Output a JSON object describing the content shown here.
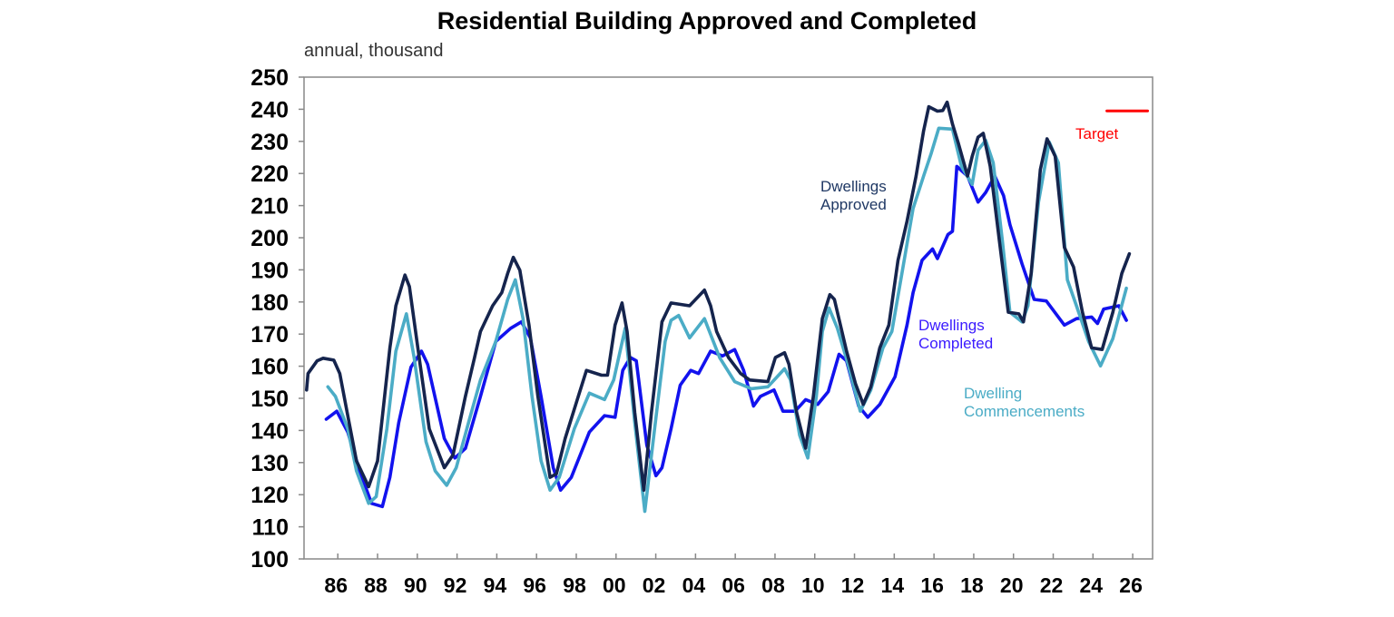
{
  "chart_data": {
    "type": "line",
    "title": "Residential Building Approved and Completed",
    "subtitle": "annual, thousand",
    "xlabel": "",
    "ylabel": "",
    "ylim": [
      100,
      250
    ],
    "xlim": [
      1984.3,
      2027.0
    ],
    "y_ticks": [
      100,
      110,
      120,
      130,
      140,
      150,
      160,
      170,
      180,
      190,
      200,
      210,
      220,
      230,
      240,
      250
    ],
    "y_tick_labels": [
      "100",
      "110",
      "120",
      "130",
      "140",
      "150",
      "160",
      "170",
      "180",
      "190",
      "200",
      "210",
      "220",
      "230",
      "240",
      "250"
    ],
    "x_ticks": [
      1986,
      1988,
      1990,
      1992,
      1994,
      1996,
      1998,
      2000,
      2002,
      2004,
      2006,
      2008,
      2010,
      2012,
      2014,
      2016,
      2018,
      2020,
      2022,
      2024,
      2026
    ],
    "x_tick_labels": [
      "86",
      "88",
      "90",
      "92",
      "94",
      "96",
      "98",
      "00",
      "02",
      "04",
      "06",
      "08",
      "10",
      "12",
      "14",
      "16",
      "18",
      "20",
      "22",
      "24",
      "26"
    ],
    "grid": false,
    "colors": {
      "approved": "#15244d",
      "completed": "#1212ee",
      "commencements": "#4bacc6",
      "target": "#ff0000"
    },
    "series": [
      {
        "name": "Dwellings Approved",
        "key": "approved",
        "points": [
          [
            1984.43,
            152.6
          ],
          [
            1984.5,
            157.7
          ],
          [
            1984.96,
            161.7
          ],
          [
            1985.26,
            162.5
          ],
          [
            1985.8,
            161.9
          ],
          [
            1986.1,
            157.7
          ],
          [
            1986.5,
            144.6
          ],
          [
            1986.94,
            130.5
          ],
          [
            1987.55,
            122.5
          ],
          [
            1988.0,
            130.5
          ],
          [
            1988.62,
            165.7
          ],
          [
            1988.92,
            178.8
          ],
          [
            1989.38,
            188.4
          ],
          [
            1989.6,
            184.8
          ],
          [
            1990.14,
            160.6
          ],
          [
            1990.6,
            140.5
          ],
          [
            1991.36,
            128.4
          ],
          [
            1991.8,
            132.4
          ],
          [
            1992.42,
            150.6
          ],
          [
            1992.88,
            162.7
          ],
          [
            1993.18,
            170.8
          ],
          [
            1993.79,
            178.8
          ],
          [
            1994.25,
            182.9
          ],
          [
            1994.55,
            188.9
          ],
          [
            1994.83,
            193.9
          ],
          [
            1995.16,
            189.9
          ],
          [
            1995.62,
            172.8
          ],
          [
            1996.07,
            150.6
          ],
          [
            1996.68,
            125.4
          ],
          [
            1997.0,
            126.5
          ],
          [
            1997.44,
            137.5
          ],
          [
            1998.05,
            149.6
          ],
          [
            1998.51,
            158.7
          ],
          [
            1999.27,
            157.2
          ],
          [
            1999.57,
            157.2
          ],
          [
            1999.95,
            172.8
          ],
          [
            2000.3,
            179.7
          ],
          [
            2000.56,
            170.8
          ],
          [
            2000.94,
            145.6
          ],
          [
            2001.4,
            121.4
          ],
          [
            2001.78,
            145.6
          ],
          [
            2002.31,
            173.8
          ],
          [
            2002.77,
            179.7
          ],
          [
            2003.7,
            178.8
          ],
          [
            2004.45,
            183.7
          ],
          [
            2004.76,
            178.8
          ],
          [
            2005.06,
            170.8
          ],
          [
            2005.66,
            162.7
          ],
          [
            2006.27,
            157.7
          ],
          [
            2006.73,
            155.7
          ],
          [
            2007.64,
            155.2
          ],
          [
            2008.02,
            162.7
          ],
          [
            2008.48,
            164.2
          ],
          [
            2008.7,
            160.6
          ],
          [
            2009.09,
            145.6
          ],
          [
            2009.54,
            134.5
          ],
          [
            2009.93,
            150.6
          ],
          [
            2010.38,
            174.8
          ],
          [
            2010.76,
            182.3
          ],
          [
            2010.99,
            180.8
          ],
          [
            2011.6,
            164.7
          ],
          [
            2012.05,
            154.6
          ],
          [
            2012.44,
            148.1
          ],
          [
            2012.82,
            153.6
          ],
          [
            2013.27,
            165.7
          ],
          [
            2013.73,
            172.8
          ],
          [
            2014.19,
            193.0
          ],
          [
            2014.64,
            205.1
          ],
          [
            2015.1,
            219.2
          ],
          [
            2015.48,
            233.3
          ],
          [
            2015.74,
            240.8
          ],
          [
            2016.17,
            239.4
          ],
          [
            2016.44,
            239.6
          ],
          [
            2016.66,
            242.2
          ],
          [
            2016.93,
            235.4
          ],
          [
            2017.23,
            229.3
          ],
          [
            2017.69,
            219.2
          ],
          [
            2017.92,
            225.3
          ],
          [
            2018.22,
            231.3
          ],
          [
            2018.48,
            232.5
          ],
          [
            2018.83,
            222.2
          ],
          [
            2019.29,
            199.0
          ],
          [
            2019.74,
            176.8
          ],
          [
            2020.27,
            176.3
          ],
          [
            2020.5,
            173.8
          ],
          [
            2020.89,
            188.9
          ],
          [
            2021.35,
            221.2
          ],
          [
            2021.69,
            230.8
          ],
          [
            2022.1,
            225.3
          ],
          [
            2022.56,
            197.0
          ],
          [
            2023.02,
            190.9
          ],
          [
            2023.47,
            176.8
          ],
          [
            2023.93,
            165.7
          ],
          [
            2024.46,
            165.2
          ],
          [
            2025.0,
            176.8
          ],
          [
            2025.45,
            188.9
          ],
          [
            2025.83,
            195.0
          ]
        ]
      },
      {
        "name": "Dwellings Completed",
        "key": "completed",
        "points": [
          [
            1985.42,
            143.5
          ],
          [
            1985.95,
            146.0
          ],
          [
            1986.5,
            139.5
          ],
          [
            1987.1,
            127.4
          ],
          [
            1987.7,
            117.3
          ],
          [
            1988.24,
            116.3
          ],
          [
            1988.62,
            125.4
          ],
          [
            1989.07,
            142.5
          ],
          [
            1989.68,
            159.7
          ],
          [
            1990.21,
            164.7
          ],
          [
            1990.52,
            160.6
          ],
          [
            1991.36,
            137.5
          ],
          [
            1991.89,
            131.4
          ],
          [
            1992.42,
            134.4
          ],
          [
            1993.18,
            150.6
          ],
          [
            1993.95,
            167.7
          ],
          [
            1994.7,
            171.8
          ],
          [
            1995.24,
            173.8
          ],
          [
            1995.69,
            168.8
          ],
          [
            1996.23,
            150.6
          ],
          [
            1996.84,
            128.4
          ],
          [
            1997.21,
            121.4
          ],
          [
            1997.75,
            125.4
          ],
          [
            1998.66,
            139.5
          ],
          [
            1999.42,
            144.6
          ],
          [
            1999.95,
            144.1
          ],
          [
            2000.34,
            158.7
          ],
          [
            2000.72,
            162.7
          ],
          [
            2001.02,
            161.7
          ],
          [
            2001.55,
            135.4
          ],
          [
            2002.01,
            125.9
          ],
          [
            2002.31,
            128.4
          ],
          [
            2002.77,
            140.5
          ],
          [
            2003.23,
            154.1
          ],
          [
            2003.76,
            158.7
          ],
          [
            2004.15,
            157.7
          ],
          [
            2004.76,
            164.7
          ],
          [
            2005.36,
            163.2
          ],
          [
            2005.97,
            165.2
          ],
          [
            2006.42,
            158.7
          ],
          [
            2006.92,
            147.6
          ],
          [
            2007.26,
            150.6
          ],
          [
            2007.95,
            152.6
          ],
          [
            2008.4,
            146.0
          ],
          [
            2009.01,
            146.0
          ],
          [
            2009.54,
            149.6
          ],
          [
            2010.15,
            148.1
          ],
          [
            2010.68,
            152.1
          ],
          [
            2011.22,
            163.7
          ],
          [
            2011.6,
            161.7
          ],
          [
            2012.21,
            147.6
          ],
          [
            2012.67,
            144.1
          ],
          [
            2013.27,
            148.1
          ],
          [
            2014.04,
            156.7
          ],
          [
            2014.64,
            172.8
          ],
          [
            2014.95,
            182.9
          ],
          [
            2015.4,
            193.0
          ],
          [
            2015.93,
            196.5
          ],
          [
            2016.17,
            193.5
          ],
          [
            2016.7,
            201.0
          ],
          [
            2016.93,
            202.0
          ],
          [
            2017.15,
            222.2
          ],
          [
            2017.69,
            219.2
          ],
          [
            2018.22,
            211.1
          ],
          [
            2018.6,
            214.1
          ],
          [
            2019.06,
            219.2
          ],
          [
            2019.5,
            213.1
          ],
          [
            2019.82,
            204.1
          ],
          [
            2020.43,
            191.9
          ],
          [
            2021.04,
            180.8
          ],
          [
            2021.65,
            180.3
          ],
          [
            2022.56,
            172.8
          ],
          [
            2023.17,
            174.8
          ],
          [
            2023.93,
            175.3
          ],
          [
            2024.23,
            173.3
          ],
          [
            2024.54,
            177.8
          ],
          [
            2025.3,
            178.8
          ],
          [
            2025.68,
            174.3
          ]
        ]
      },
      {
        "name": "Dwelling Commencements",
        "key": "commencements",
        "points": [
          [
            1985.5,
            153.6
          ],
          [
            1985.88,
            150.6
          ],
          [
            1986.5,
            140.5
          ],
          [
            1986.94,
            127.4
          ],
          [
            1987.55,
            117.3
          ],
          [
            1987.93,
            119.4
          ],
          [
            1988.47,
            140.5
          ],
          [
            1988.92,
            164.7
          ],
          [
            1989.45,
            176.3
          ],
          [
            1989.84,
            162.7
          ],
          [
            1990.44,
            136.5
          ],
          [
            1990.9,
            127.4
          ],
          [
            1991.48,
            122.9
          ],
          [
            1991.96,
            128.4
          ],
          [
            1992.58,
            142.5
          ],
          [
            1993.18,
            155.7
          ],
          [
            1993.95,
            167.7
          ],
          [
            1994.55,
            180.8
          ],
          [
            1994.93,
            186.9
          ],
          [
            1995.32,
            174.8
          ],
          [
            1995.77,
            150.6
          ],
          [
            1996.23,
            130.5
          ],
          [
            1996.68,
            121.4
          ],
          [
            1997.14,
            125.4
          ],
          [
            1997.9,
            140.5
          ],
          [
            1998.66,
            151.6
          ],
          [
            1999.42,
            149.6
          ],
          [
            1999.88,
            155.7
          ],
          [
            2000.46,
            171.8
          ],
          [
            2000.94,
            142.5
          ],
          [
            2001.45,
            114.8
          ],
          [
            2001.94,
            140.5
          ],
          [
            2002.47,
            167.7
          ],
          [
            2002.77,
            174.3
          ],
          [
            2003.15,
            175.8
          ],
          [
            2003.7,
            168.8
          ],
          [
            2004.45,
            174.8
          ],
          [
            2005.21,
            162.7
          ],
          [
            2005.97,
            155.2
          ],
          [
            2006.8,
            153.0
          ],
          [
            2007.64,
            153.6
          ],
          [
            2008.48,
            159.2
          ],
          [
            2008.78,
            155.7
          ],
          [
            2009.24,
            138.5
          ],
          [
            2009.65,
            131.4
          ],
          [
            2010.08,
            150.6
          ],
          [
            2010.38,
            170.8
          ],
          [
            2010.72,
            178.1
          ],
          [
            2011.14,
            171.8
          ],
          [
            2011.68,
            160.6
          ],
          [
            2012.29,
            146.0
          ],
          [
            2012.82,
            152.6
          ],
          [
            2013.43,
            165.7
          ],
          [
            2013.88,
            170.8
          ],
          [
            2014.5,
            193.0
          ],
          [
            2014.95,
            209.1
          ],
          [
            2015.48,
            219.2
          ],
          [
            2015.86,
            226.3
          ],
          [
            2016.24,
            234.1
          ],
          [
            2016.93,
            233.8
          ],
          [
            2017.38,
            222.2
          ],
          [
            2017.92,
            216.6
          ],
          [
            2018.22,
            227.3
          ],
          [
            2018.6,
            230.3
          ],
          [
            2018.98,
            223.3
          ],
          [
            2019.44,
            199.0
          ],
          [
            2019.82,
            176.8
          ],
          [
            2020.43,
            173.8
          ],
          [
            2020.73,
            178.8
          ],
          [
            2021.26,
            211.1
          ],
          [
            2021.8,
            229.8
          ],
          [
            2022.26,
            223.3
          ],
          [
            2022.71,
            186.9
          ],
          [
            2023.17,
            178.8
          ],
          [
            2023.78,
            167.7
          ],
          [
            2024.38,
            160.1
          ],
          [
            2025.0,
            168.6
          ],
          [
            2025.68,
            184.3
          ]
        ]
      },
      {
        "name": "Target",
        "key": "target",
        "points": [
          [
            2024.7,
            239.5
          ],
          [
            2026.75,
            239.5
          ]
        ]
      }
    ],
    "annotations": {
      "approved": [
        "Dwellings",
        "Approved"
      ],
      "completed": [
        "Dwellings",
        "Completed"
      ],
      "commencements": [
        "Dwelling",
        "Commencements"
      ],
      "target": "Target"
    }
  }
}
